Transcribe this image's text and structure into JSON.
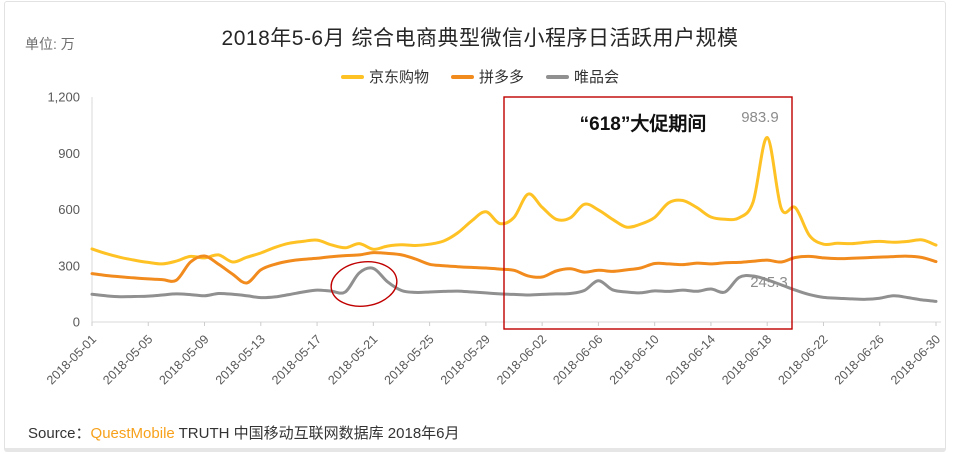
{
  "page": {
    "unit_label": "单位: 万"
  },
  "header": {
    "title": "2018年5-6月 综合电商典型微信小程序日活跃用户规模"
  },
  "legend": [
    {
      "label": "京东购物",
      "color": "#FFC225"
    },
    {
      "label": "拼多多",
      "color": "#F28B1E"
    },
    {
      "label": "唯品会",
      "color": "#909090"
    }
  ],
  "annotations": {
    "promo_label": "“618”大促期间",
    "peak_jd_label": "983.9",
    "peak_vip_label": "245.3"
  },
  "source": {
    "prefix": "Source：",
    "brand": "QuestMobile",
    "suffix": " TRUTH 中国移动互联网数据库 2018年6月"
  },
  "chart_data": {
    "type": "line",
    "title": "2018年5-6月 综合电商典型微信小程序日活跃用户规模",
    "unit": "万",
    "ylim": [
      0,
      1200
    ],
    "y_ticks": [
      0,
      300,
      600,
      900,
      1200
    ],
    "y_tick_labels": [
      "0",
      "300",
      "600",
      "900",
      "1,200"
    ],
    "x_tick_labels": [
      "2018-05-01",
      "2018-05-05",
      "2018-05-09",
      "2018-05-13",
      "2018-05-17",
      "2018-05-21",
      "2018-05-25",
      "2018-05-29",
      "2018-06-02",
      "2018-06-06",
      "2018-06-10",
      "2018-06-14",
      "2018-06-18",
      "2018-06-22",
      "2018-06-26",
      "2018-06-30"
    ],
    "x_tick_every_n_points": 4,
    "grid": false,
    "legend_position": "top-center",
    "highlight_box": {
      "label": "“618”大促期间",
      "from": "2018-05-30",
      "to": "2018-06-20"
    },
    "callouts": [
      {
        "series": "京东购物",
        "date": "2018-06-18",
        "value": 983.9
      },
      {
        "series": "唯品会",
        "date": "2018-06-17",
        "value": 245.3
      },
      {
        "type": "ellipse",
        "series": "唯品会",
        "around": "2018-05-20"
      }
    ],
    "series": [
      {
        "name": "京东购物",
        "color": "#FFC225",
        "values": [
          390,
          365,
          345,
          330,
          318,
          310,
          325,
          350,
          342,
          358,
          320,
          345,
          368,
          398,
          420,
          430,
          437,
          412,
          396,
          418,
          388,
          405,
          412,
          408,
          415,
          432,
          475,
          540,
          588,
          525,
          558,
          682,
          612,
          548,
          556,
          628,
          598,
          548,
          506,
          522,
          558,
          636,
          648,
          610,
          560,
          548,
          556,
          640,
          983.9,
          605,
          610,
          462,
          415,
          420,
          418,
          425,
          430,
          425,
          430,
          438,
          410
        ]
      },
      {
        "name": "拼多多",
        "color": "#F28B1E",
        "values": [
          258,
          248,
          241,
          235,
          230,
          226,
          223,
          320,
          352,
          308,
          255,
          208,
          278,
          308,
          325,
          334,
          340,
          348,
          354,
          358,
          370,
          366,
          358,
          336,
          308,
          300,
          295,
          291,
          288,
          282,
          276,
          246,
          240,
          272,
          284,
          266,
          276,
          270,
          278,
          288,
          312,
          310,
          306,
          314,
          310,
          316,
          318,
          324,
          330,
          320,
          344,
          350,
          342,
          338,
          340,
          343,
          346,
          349,
          351,
          344,
          322
        ]
      },
      {
        "name": "唯品会",
        "color": "#909090",
        "values": [
          148,
          140,
          135,
          136,
          138,
          144,
          150,
          146,
          140,
          152,
          148,
          140,
          130,
          134,
          146,
          160,
          170,
          165,
          160,
          262,
          286,
          215,
          168,
          158,
          160,
          163,
          165,
          160,
          155,
          150,
          147,
          144,
          147,
          150,
          152,
          168,
          220,
          172,
          160,
          156,
          166,
          163,
          170,
          164,
          176,
          160,
          238,
          245.3,
          225,
          198,
          170,
          146,
          131,
          127,
          123,
          121,
          127,
          140,
          130,
          118,
          110
        ]
      }
    ]
  }
}
